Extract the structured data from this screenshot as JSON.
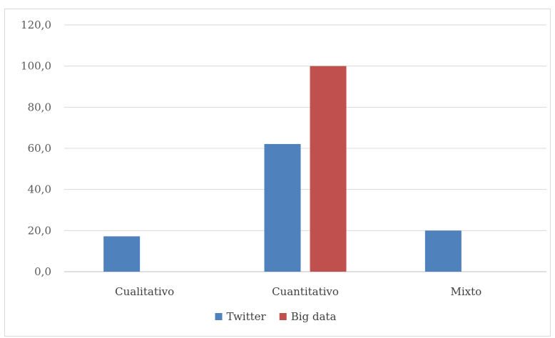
{
  "chart_data": {
    "type": "bar",
    "title": "",
    "xlabel": "",
    "ylabel": "",
    "categories": [
      "Cualitativo",
      "Cuantitativo",
      "Mixto"
    ],
    "series": [
      {
        "name": "Twitter",
        "values": [
          17.2,
          62.1,
          20.0
        ],
        "color": "#4f81bd"
      },
      {
        "name": "Big data",
        "values": [
          0,
          100.0,
          0
        ],
        "color": "#c0504d"
      }
    ],
    "ylim": [
      0,
      120
    ],
    "yticks": [
      "0,0",
      "20,0",
      "40,0",
      "60,0",
      "80,0",
      "100,0",
      "120,0"
    ],
    "grid": true,
    "legend": "bottom"
  }
}
